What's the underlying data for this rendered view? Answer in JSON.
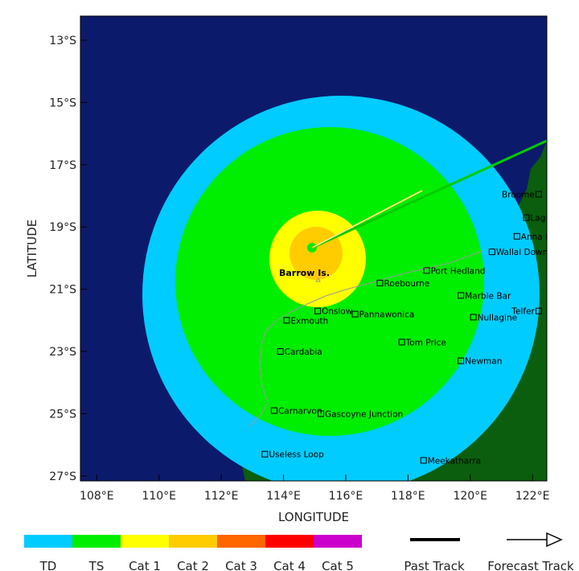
{
  "colors": {
    "ocean": "#0c1a6c",
    "land": "#0a5e0d",
    "td": "#00ccff",
    "ts": "#00ee00",
    "cat1": "#ffff00",
    "cat2": "#ffcc00",
    "cat3": "#ff6600",
    "cat4": "#ff0000",
    "cat5": "#cc00cc"
  },
  "axes": {
    "x_title": "LONGITUDE",
    "y_title": "LATITUDE",
    "x_ticks": [
      "108°E",
      "110°E",
      "112°E",
      "114°E",
      "116°E",
      "118°E",
      "120°E",
      "122°E"
    ],
    "y_ticks": [
      "13°S",
      "15°S",
      "17°S",
      "19°S",
      "21°S",
      "23°S",
      "25°S",
      "27°S"
    ]
  },
  "towns": [
    {
      "name": "Broome",
      "lon": 122.2,
      "lat": -17.95
    },
    {
      "name": "Lagrange",
      "lon": 121.8,
      "lat": -18.7
    },
    {
      "name": "Anna Plains",
      "lon": 121.5,
      "lat": -19.3
    },
    {
      "name": "Wallal Downs",
      "lon": 120.7,
      "lat": -19.8
    },
    {
      "name": "Port Hedland",
      "lon": 118.6,
      "lat": -20.4
    },
    {
      "name": "Roebourne",
      "lon": 117.1,
      "lat": -20.8
    },
    {
      "name": "Marble Bar",
      "lon": 119.7,
      "lat": -21.2
    },
    {
      "name": "Telfer",
      "lon": 122.2,
      "lat": -21.7
    },
    {
      "name": "Onslow",
      "lon": 115.1,
      "lat": -21.7
    },
    {
      "name": "Pannawonica",
      "lon": 116.3,
      "lat": -21.8
    },
    {
      "name": "Exmouth",
      "lon": 114.1,
      "lat": -22.0
    },
    {
      "name": "Nullagine",
      "lon": 120.1,
      "lat": -21.9
    },
    {
      "name": "Tom Price",
      "lon": 117.8,
      "lat": -22.7
    },
    {
      "name": "Cardabia",
      "lon": 113.9,
      "lat": -23.0
    },
    {
      "name": "Newman",
      "lon": 119.7,
      "lat": -23.3
    },
    {
      "name": "Carnarvon",
      "lon": 113.7,
      "lat": -24.9
    },
    {
      "name": "Gascoyne Junction",
      "lon": 115.2,
      "lat": -25.0
    },
    {
      "name": "Useless Loop",
      "lon": 113.4,
      "lat": -26.3
    },
    {
      "name": "Meekatharra",
      "lon": 118.5,
      "lat": -26.5
    }
  ],
  "island_label": "Barrow Is.",
  "legend": {
    "categories": [
      "TD",
      "TS",
      "Cat 1",
      "Cat 2",
      "Cat 3",
      "Cat 4",
      "Cat 5"
    ],
    "past_track": "Past Track",
    "forecast_track": "Forecast Track"
  }
}
